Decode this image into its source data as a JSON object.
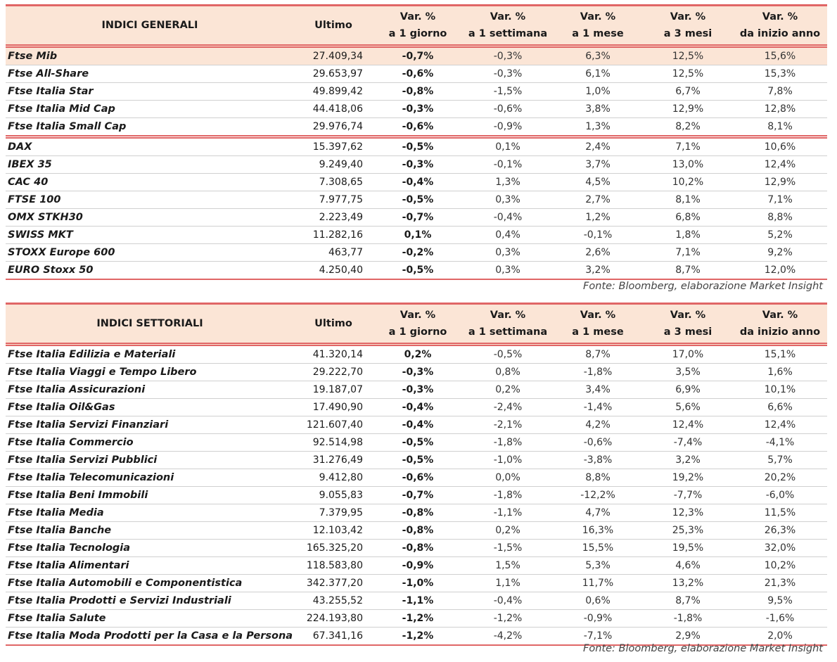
{
  "columns": [
    "Ultimo",
    "Var. %",
    "a 1 giorno",
    "Var. %",
    "a 1 settimana",
    "Var. %",
    "a 1 mese",
    "Var. %",
    "a 3 mesi",
    "Var. %",
    "da inizio anno"
  ],
  "accent": "#e06666",
  "header_bg": "#fbe5d6",
  "table1": {
    "title": "INDICI GENERALI",
    "source": "Fonte: Bloomberg, elaborazione Market Insight",
    "rows": [
      [
        "Ftse Mib",
        "27.409,34",
        "-0,7%",
        "-0,3%",
        "6,3%",
        "12,5%",
        "15,6%"
      ],
      [
        "Ftse All-Share",
        "29.653,97",
        "-0,6%",
        "-0,3%",
        "6,1%",
        "12,5%",
        "15,3%"
      ],
      [
        "Ftse Italia Star",
        "49.899,42",
        "-0,8%",
        "-1,5%",
        "1,0%",
        "6,7%",
        "7,8%"
      ],
      [
        "Ftse Italia Mid Cap",
        "44.418,06",
        "-0,3%",
        "-0,6%",
        "3,8%",
        "12,9%",
        "12,8%"
      ],
      [
        "Ftse Italia Small Cap",
        "29.976,74",
        "-0,6%",
        "-0,9%",
        "1,3%",
        "8,2%",
        "8,1%"
      ],
      [
        "DAX",
        "15.397,62",
        "-0,5%",
        "0,1%",
        "2,4%",
        "7,1%",
        "10,6%"
      ],
      [
        "IBEX 35",
        "9.249,40",
        "-0,3%",
        "-0,1%",
        "3,7%",
        "13,0%",
        "12,4%"
      ],
      [
        "CAC 40",
        "7.308,65",
        "-0,4%",
        "1,3%",
        "4,5%",
        "10,2%",
        "12,9%"
      ],
      [
        "FTSE 100",
        "7.977,75",
        "-0,5%",
        "0,3%",
        "2,7%",
        "8,1%",
        "7,1%"
      ],
      [
        "OMX STKH30",
        "2.223,49",
        "-0,7%",
        "-0,4%",
        "1,2%",
        "6,8%",
        "8,8%"
      ],
      [
        "SWISS MKT",
        "11.282,16",
        "0,1%",
        "0,4%",
        "-0,1%",
        "1,8%",
        "5,2%"
      ],
      [
        "STOXX Europe 600",
        "463,77",
        "-0,2%",
        "0,3%",
        "2,6%",
        "7,1%",
        "9,2%"
      ],
      [
        "EURO Stoxx 50",
        "4.250,40",
        "-0,5%",
        "0,3%",
        "3,2%",
        "8,7%",
        "12,0%"
      ]
    ]
  },
  "table2": {
    "title": "INDICI SETTORIALI",
    "source": "Fonte: Bloomberg, elaborazione Market Insight",
    "rows": [
      [
        "Ftse Italia Edilizia e Materiali",
        "41.320,14",
        "0,2%",
        "-0,5%",
        "8,7%",
        "17,0%",
        "15,1%"
      ],
      [
        "Ftse Italia Viaggi e Tempo Libero",
        "29.222,70",
        "-0,3%",
        "0,8%",
        "-1,8%",
        "3,5%",
        "1,6%"
      ],
      [
        "Ftse Italia Assicurazioni",
        "19.187,07",
        "-0,3%",
        "0,2%",
        "3,4%",
        "6,9%",
        "10,1%"
      ],
      [
        "Ftse Italia Oil&Gas",
        "17.490,90",
        "-0,4%",
        "-2,4%",
        "-1,4%",
        "5,6%",
        "6,6%"
      ],
      [
        "Ftse Italia Servizi Finanziari",
        "121.607,40",
        "-0,4%",
        "-2,1%",
        "4,2%",
        "12,4%",
        "12,4%"
      ],
      [
        "Ftse Italia Commercio",
        "92.514,98",
        "-0,5%",
        "-1,8%",
        "-0,6%",
        "-7,4%",
        "-4,1%"
      ],
      [
        "Ftse Italia Servizi Pubblici",
        "31.276,49",
        "-0,5%",
        "-1,0%",
        "-3,8%",
        "3,2%",
        "5,7%"
      ],
      [
        "Ftse Italia Telecomunicazioni",
        "9.412,80",
        "-0,6%",
        "0,0%",
        "8,8%",
        "19,2%",
        "20,2%"
      ],
      [
        "Ftse Italia Beni Immobili",
        "9.055,83",
        "-0,7%",
        "-1,8%",
        "-12,2%",
        "-7,7%",
        "-6,0%"
      ],
      [
        "Ftse Italia Media",
        "7.379,95",
        "-0,8%",
        "-1,1%",
        "4,7%",
        "12,3%",
        "11,5%"
      ],
      [
        "Ftse Italia Banche",
        "12.103,42",
        "-0,8%",
        "0,2%",
        "16,3%",
        "25,3%",
        "26,3%"
      ],
      [
        "Ftse Italia Tecnologia",
        "165.325,20",
        "-0,8%",
        "-1,5%",
        "15,5%",
        "19,5%",
        "32,0%"
      ],
      [
        "Ftse Italia Alimentari",
        "118.583,80",
        "-0,9%",
        "1,5%",
        "5,3%",
        "4,6%",
        "10,2%"
      ],
      [
        "Ftse Italia Automobili e Componentistica",
        "342.377,20",
        "-1,0%",
        "1,1%",
        "11,7%",
        "13,2%",
        "21,3%"
      ],
      [
        "Ftse Italia Prodotti e Servizi Industriali",
        "43.255,52",
        "-1,1%",
        "-0,4%",
        "0,6%",
        "8,7%",
        "9,5%"
      ],
      [
        "Ftse Italia Salute",
        "224.193,80",
        "-1,2%",
        "-1,2%",
        "-0,9%",
        "-1,8%",
        "-1,6%"
      ],
      [
        "Ftse Italia Moda Prodotti per la Casa e la Persona",
        "67.341,16",
        "-1,2%",
        "-4,2%",
        "-7,1%",
        "2,9%",
        "2,0%"
      ]
    ]
  }
}
